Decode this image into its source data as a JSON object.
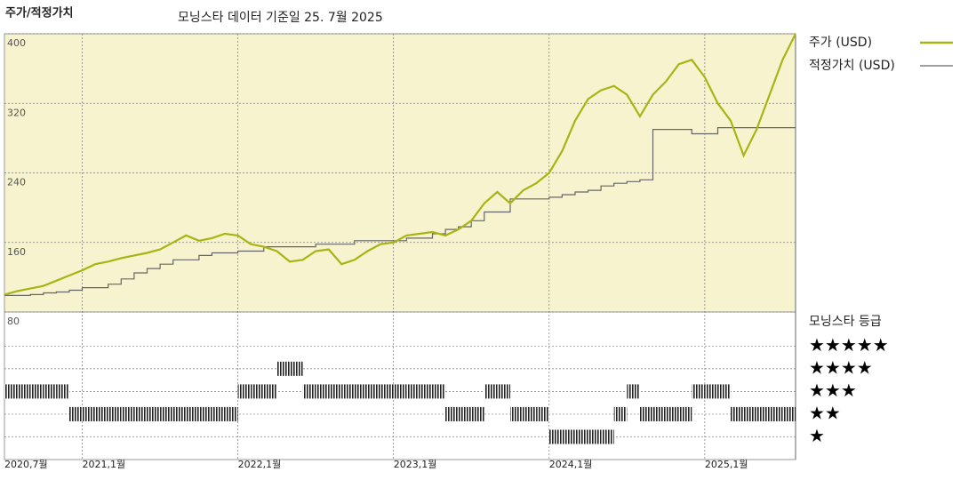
{
  "chart_data": [
    {
      "type": "line",
      "title": "주가/적정가치",
      "subtitle": "모닝스타 데이터 기준일 25. 7월 2025",
      "x": [
        "2020-07",
        "2020-08",
        "2020-09",
        "2020-10",
        "2020-11",
        "2020-12",
        "2021-01",
        "2021-02",
        "2021-03",
        "2021-04",
        "2021-05",
        "2021-06",
        "2021-07",
        "2021-08",
        "2021-09",
        "2021-10",
        "2021-11",
        "2021-12",
        "2022-01",
        "2022-02",
        "2022-03",
        "2022-04",
        "2022-05",
        "2022-06",
        "2022-07",
        "2022-08",
        "2022-09",
        "2022-10",
        "2022-11",
        "2022-12",
        "2023-01",
        "2023-02",
        "2023-03",
        "2023-04",
        "2023-05",
        "2023-06",
        "2023-07",
        "2023-08",
        "2023-09",
        "2023-10",
        "2023-11",
        "2023-12",
        "2024-01",
        "2024-02",
        "2024-03",
        "2024-04",
        "2024-05",
        "2024-06",
        "2024-07",
        "2024-08",
        "2024-09",
        "2024-10",
        "2024-11",
        "2024-12",
        "2025-01",
        "2025-02",
        "2025-03",
        "2025-04",
        "2025-05",
        "2025-06",
        "2025-07",
        "2025-08"
      ],
      "series": [
        {
          "name": "주가 (USD)",
          "color": "#a8b414",
          "values": [
            100,
            104,
            107,
            110,
            116,
            122,
            128,
            135,
            138,
            142,
            145,
            148,
            152,
            160,
            168,
            162,
            165,
            170,
            168,
            158,
            155,
            150,
            138,
            140,
            150,
            152,
            135,
            140,
            150,
            158,
            160,
            168,
            170,
            172,
            168,
            175,
            185,
            205,
            218,
            205,
            220,
            228,
            240,
            265,
            300,
            325,
            335,
            340,
            330,
            305,
            330,
            345,
            365,
            370,
            350,
            320,
            300,
            260,
            290,
            330,
            370,
            400
          ]
        },
        {
          "name": "적정가치 (USD)",
          "color": "#666666",
          "values": [
            99,
            99,
            100,
            102,
            103,
            105,
            108,
            108,
            112,
            118,
            125,
            130,
            135,
            140,
            140,
            145,
            148,
            148,
            150,
            150,
            155,
            155,
            155,
            155,
            158,
            158,
            158,
            162,
            162,
            162,
            162,
            165,
            165,
            170,
            175,
            178,
            185,
            195,
            195,
            210,
            210,
            210,
            212,
            215,
            218,
            220,
            225,
            228,
            230,
            232,
            290,
            290,
            290,
            285,
            285,
            292,
            292,
            292,
            292,
            292,
            292,
            292
          ]
        }
      ],
      "xlim": [
        "2020-07",
        "2025-08"
      ],
      "xticks": [
        {
          "value": "2020-07",
          "label": "2020,7월"
        },
        {
          "value": "2021-01",
          "label": "2021,1월"
        },
        {
          "value": "2022-01",
          "label": "2022,1월"
        },
        {
          "value": "2023-01",
          "label": "2023,1월"
        },
        {
          "value": "2024-01",
          "label": "2024,1월"
        },
        {
          "value": "2025-01",
          "label": "2025,1월"
        }
      ],
      "ylim": [
        80,
        400
      ],
      "yticks": [
        80,
        160,
        240,
        320,
        400
      ],
      "grid": true,
      "legend": "right"
    },
    {
      "type": "rating",
      "title": "모닝스타 등급",
      "x": [
        "2020-07",
        "2020-08",
        "2020-09",
        "2020-10",
        "2020-11",
        "2020-12",
        "2021-01",
        "2021-02",
        "2021-03",
        "2021-04",
        "2021-05",
        "2021-06",
        "2021-07",
        "2021-08",
        "2021-09",
        "2021-10",
        "2021-11",
        "2021-12",
        "2022-01",
        "2022-02",
        "2022-03",
        "2022-04",
        "2022-05",
        "2022-06",
        "2022-07",
        "2022-08",
        "2022-09",
        "2022-10",
        "2022-11",
        "2022-12",
        "2023-01",
        "2023-02",
        "2023-03",
        "2023-04",
        "2023-05",
        "2023-06",
        "2023-07",
        "2023-08",
        "2023-09",
        "2023-10",
        "2023-11",
        "2023-12",
        "2024-01",
        "2024-02",
        "2024-03",
        "2024-04",
        "2024-05",
        "2024-06",
        "2024-07",
        "2024-08",
        "2024-09",
        "2024-10",
        "2024-11",
        "2024-12",
        "2025-01",
        "2025-02",
        "2025-03",
        "2025-04",
        "2025-05",
        "2025-06",
        "2025-07"
      ],
      "values": [
        3,
        3,
        3,
        3,
        3,
        2,
        2,
        2,
        2,
        2,
        2,
        2,
        2,
        2,
        2,
        2,
        2,
        2,
        3,
        3,
        3,
        4,
        4,
        3,
        3,
        3,
        3,
        3,
        3,
        3,
        3,
        3,
        3,
        3,
        2,
        2,
        2,
        3,
        3,
        2,
        2,
        2,
        1,
        1,
        1,
        1,
        1,
        2,
        3,
        2,
        2,
        2,
        2,
        3,
        3,
        3,
        2,
        2,
        2,
        2,
        2
      ],
      "ylim": [
        0,
        6.5
      ],
      "yticks": [
        {
          "value": 5,
          "label": "★★★★★"
        },
        {
          "value": 4,
          "label": "★★★★"
        },
        {
          "value": 3,
          "label": "★★★"
        },
        {
          "value": 2,
          "label": "★★"
        },
        {
          "value": 1,
          "label": "★"
        }
      ]
    }
  ]
}
